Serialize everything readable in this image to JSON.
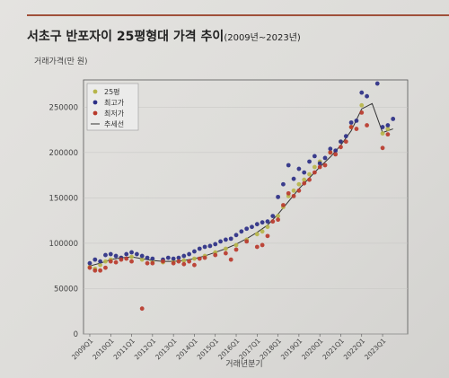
{
  "colors": {
    "accent_rule": "#a0503a",
    "p25": "#b6b54a",
    "high": "#2b2f86",
    "low": "#b83a2c",
    "trend": "#333333"
  },
  "chart_data": {
    "type": "scatter",
    "title": "서초구 반포자이 25평형대 가격 추이",
    "title_suffix": "(2009년~2023년)",
    "ylabel": "거래가격(만 원)",
    "xlabel": "거래년분기",
    "ylim": [
      0,
      280000
    ],
    "yticks": [
      0,
      50000,
      100000,
      150000,
      200000,
      250000
    ],
    "ytick_labels": [
      "0",
      "50000",
      "100000",
      "150000",
      "200000",
      "250000"
    ],
    "xlim": [
      2008.7,
      2024.2
    ],
    "xticks": [
      2009,
      2010,
      2011,
      2012,
      2013,
      2014,
      2015,
      2016,
      2017,
      2018,
      2019,
      2020,
      2021,
      2022,
      2023
    ],
    "xtick_labels": [
      "2009Q1",
      "2010Q1",
      "2011Q1",
      "2012Q1",
      "2013Q1",
      "2014Q1",
      "2015Q1",
      "2016Q1",
      "2017Q1",
      "2018Q1",
      "2019Q1",
      "2020Q1",
      "2021Q1",
      "2022Q1",
      "2023Q1"
    ],
    "legend_position": "top-left",
    "series": [
      {
        "name": "25평",
        "color_key": "p25",
        "x": [
          2009.0,
          2009.25,
          2009.5,
          2009.75,
          2010.0,
          2010.5,
          2011.0,
          2011.5,
          2012.0,
          2012.5,
          2013.0,
          2013.5,
          2014.0,
          2014.5,
          2015.0,
          2015.5,
          2016.0,
          2016.5,
          2017.0,
          2017.25,
          2017.5,
          2018.0,
          2018.25,
          2018.5,
          2018.75,
          2019.0,
          2019.25,
          2019.5,
          2019.75,
          2020.0,
          2020.5,
          2021.0,
          2021.5,
          2022.0,
          2023.0,
          2023.25
        ],
        "y": [
          74000,
          72000,
          76000,
          80000,
          82000,
          84000,
          85000,
          82000,
          80000,
          79000,
          80000,
          81000,
          83000,
          86000,
          90000,
          94000,
          98000,
          104000,
          110000,
          113000,
          118000,
          130000,
          140000,
          152000,
          158000,
          165000,
          170000,
          176000,
          184000,
          190000,
          200000,
          212000,
          228000,
          252000,
          221000,
          226000
        ]
      },
      {
        "name": "최고가",
        "color_key": "high",
        "x": [
          2009.0,
          2009.25,
          2009.5,
          2009.75,
          2010.0,
          2010.25,
          2010.5,
          2010.75,
          2011.0,
          2011.25,
          2011.5,
          2011.75,
          2012.0,
          2012.5,
          2012.75,
          2013.0,
          2013.25,
          2013.5,
          2013.75,
          2014.0,
          2014.25,
          2014.5,
          2014.75,
          2015.0,
          2015.25,
          2015.5,
          2015.75,
          2016.0,
          2016.25,
          2016.5,
          2016.75,
          2017.0,
          2017.25,
          2017.5,
          2017.75,
          2018.0,
          2018.25,
          2018.5,
          2018.75,
          2019.0,
          2019.25,
          2019.5,
          2019.75,
          2020.0,
          2020.25,
          2020.5,
          2020.75,
          2021.0,
          2021.25,
          2021.5,
          2021.75,
          2022.0,
          2022.25,
          2022.75,
          2023.0,
          2023.25,
          2023.5
        ],
        "y": [
          78000,
          82000,
          80000,
          87000,
          88000,
          86000,
          84000,
          88000,
          90000,
          88000,
          86000,
          84000,
          83000,
          82000,
          84000,
          83000,
          84000,
          86000,
          88000,
          91000,
          94000,
          96000,
          97000,
          99000,
          102000,
          104000,
          105000,
          109000,
          113000,
          116000,
          118000,
          121000,
          123000,
          124000,
          130000,
          151000,
          165000,
          186000,
          171000,
          182000,
          178000,
          190000,
          196000,
          188000,
          194000,
          204000,
          202000,
          212000,
          218000,
          233000,
          235000,
          266000,
          262000,
          276000,
          228000,
          230000,
          237000
        ]
      },
      {
        "name": "최저가",
        "color_key": "low",
        "x": [
          2009.0,
          2009.25,
          2009.5,
          2009.75,
          2010.0,
          2010.25,
          2010.5,
          2010.75,
          2011.0,
          2011.5,
          2011.75,
          2012.0,
          2012.5,
          2013.0,
          2013.25,
          2013.5,
          2013.75,
          2014.0,
          2014.25,
          2014.5,
          2015.0,
          2015.5,
          2015.75,
          2016.0,
          2016.5,
          2017.0,
          2017.25,
          2017.5,
          2017.75,
          2018.0,
          2018.25,
          2018.5,
          2018.75,
          2019.0,
          2019.25,
          2019.5,
          2019.75,
          2020.0,
          2020.25,
          2020.5,
          2020.75,
          2021.0,
          2021.25,
          2021.5,
          2021.75,
          2022.0,
          2022.25,
          2023.0,
          2023.25
        ],
        "y": [
          73000,
          70000,
          70000,
          73000,
          80000,
          79000,
          82000,
          83000,
          80000,
          28000,
          78000,
          78000,
          80000,
          78000,
          80000,
          77000,
          80000,
          76000,
          83000,
          84000,
          87000,
          89000,
          82000,
          93000,
          102000,
          96000,
          98000,
          108000,
          124000,
          126000,
          142000,
          155000,
          152000,
          158000,
          166000,
          170000,
          178000,
          184000,
          186000,
          200000,
          198000,
          206000,
          212000,
          228000,
          226000,
          244000,
          230000,
          205000,
          220000
        ]
      },
      {
        "name": "추세선",
        "color_key": "trend",
        "kind": "line",
        "x": [
          2009.0,
          2009.5,
          2010.0,
          2010.5,
          2011.0,
          2011.5,
          2012.0,
          2012.5,
          2013.0,
          2013.5,
          2014.0,
          2014.5,
          2015.0,
          2015.5,
          2016.0,
          2016.5,
          2017.0,
          2017.5,
          2018.0,
          2018.5,
          2019.0,
          2019.5,
          2020.0,
          2020.5,
          2021.0,
          2021.5,
          2022.0,
          2022.5,
          2023.0,
          2023.5
        ],
        "y": [
          75000,
          78000,
          82000,
          84000,
          85000,
          83000,
          81000,
          80000,
          80000,
          81000,
          83000,
          86000,
          90000,
          94000,
          99000,
          105000,
          112000,
          120000,
          132000,
          146000,
          160000,
          172000,
          184000,
          195000,
          208000,
          224000,
          248000,
          254000,
          222000,
          226000
        ]
      }
    ]
  }
}
